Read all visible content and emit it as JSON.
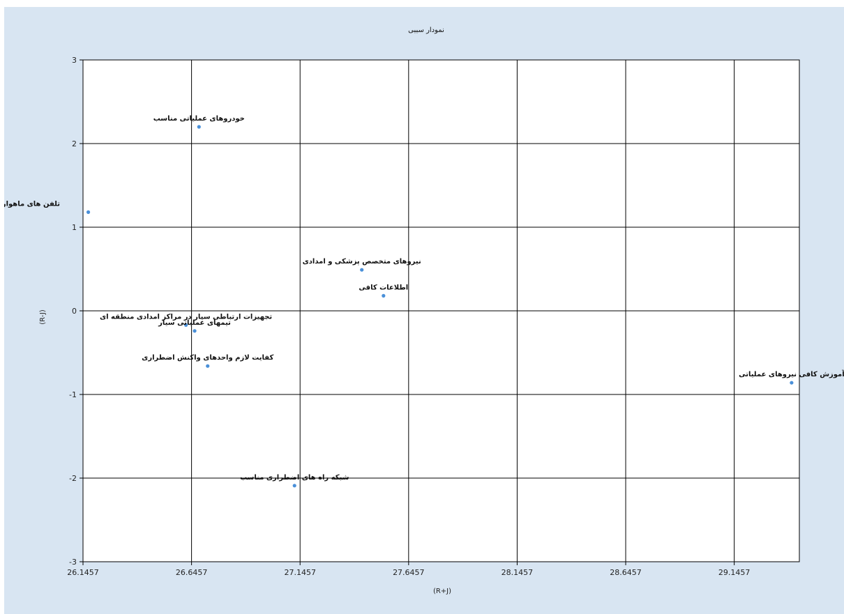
{
  "chart_data": {
    "type": "scatter",
    "title": "نمودار سببی",
    "xlabel": "(R+J)",
    "ylabel": "(R-J)",
    "xlim": [
      26.1457,
      29.4457
    ],
    "ylim": [
      -3,
      3
    ],
    "x_ticks": [
      26.1457,
      26.6457,
      27.1457,
      27.6457,
      28.1457,
      28.6457,
      29.1457
    ],
    "y_ticks": [
      3,
      2,
      1,
      0,
      -1,
      -2,
      -3
    ],
    "grid": true,
    "marker_color": "#4a90d9",
    "points": [
      {
        "label": "خودروهای عملیاتی مناسب",
        "x": 26.68,
        "y": 2.2
      },
      {
        "label": "تلفن های ماهواره ای",
        "x": 26.17,
        "y": 1.18
      },
      {
        "label": "نیروهای متخصص پزشکی و امدادی",
        "x": 27.43,
        "y": 0.49
      },
      {
        "label": "اطلاعات کافی",
        "x": 27.53,
        "y": 0.18
      },
      {
        "label": "تجهیزات ارتباطی سیار در مراکز امدادی منطقه ای",
        "x": 26.62,
        "y": -0.17
      },
      {
        "label": "تیمهای عملیاتی سیار",
        "x": 26.66,
        "y": -0.24
      },
      {
        "label": "کفایت لازم واحدهای واکنش اضطراری",
        "x": 26.72,
        "y": -0.66
      },
      {
        "label": "آموزش کافی نیروهای عملیاتی",
        "x": 29.41,
        "y": -0.86
      },
      {
        "label": "شبکه راه های اضطراری مناسب",
        "x": 27.12,
        "y": -2.09
      }
    ]
  }
}
